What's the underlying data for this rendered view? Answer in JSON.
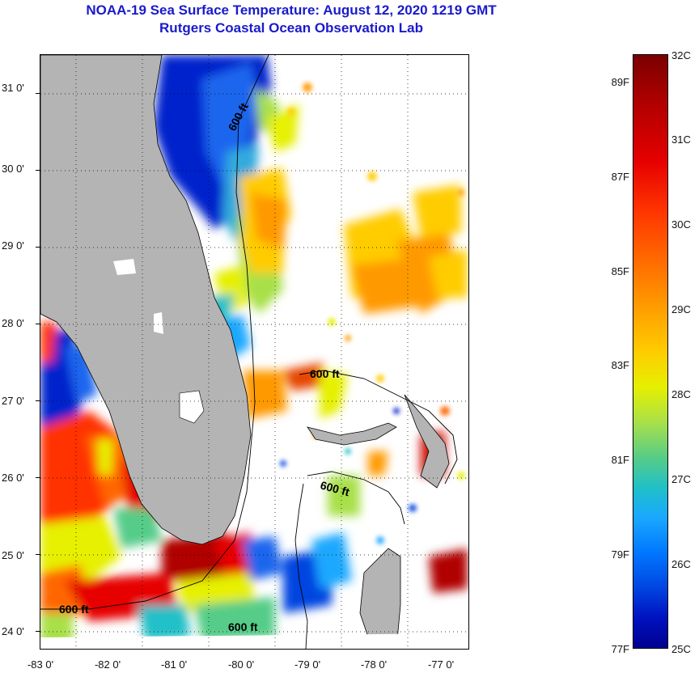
{
  "title": {
    "line1": "NOAA-19 Sea Surface Temperature:  August 12, 2020 1219 GMT",
    "line2": "Rutgers Coastal Ocean Observation Lab"
  },
  "map": {
    "lat_labels": [
      "31 0'",
      "30 0'",
      "29 0'",
      "28 0'",
      "27 0'",
      "26 0'",
      "25 0'",
      "24 0'"
    ],
    "lon_labels": [
      "-83 0'",
      "-82 0'",
      "-81 0'",
      "-80 0'",
      "-79 0'",
      "-78 0'",
      "-77 0'"
    ],
    "contour_labels": [
      "600 ft",
      "600 ft",
      "600 ft",
      "600 ft",
      "600 ft"
    ],
    "land_color": "#b4b4b4",
    "grid": "dotted"
  },
  "colorbar": {
    "celsius": [
      "32C",
      "31C",
      "30C",
      "29C",
      "28C",
      "27C",
      "26C",
      "25C"
    ],
    "fahrenheit": [
      "89F",
      "87F",
      "85F",
      "83F",
      "81F",
      "79F",
      "77F"
    ],
    "colors": [
      "#7a0000",
      "#e60000",
      "#ff9900",
      "#e6f000",
      "#20c0c8",
      "#0077ff",
      "#00008f"
    ]
  }
}
